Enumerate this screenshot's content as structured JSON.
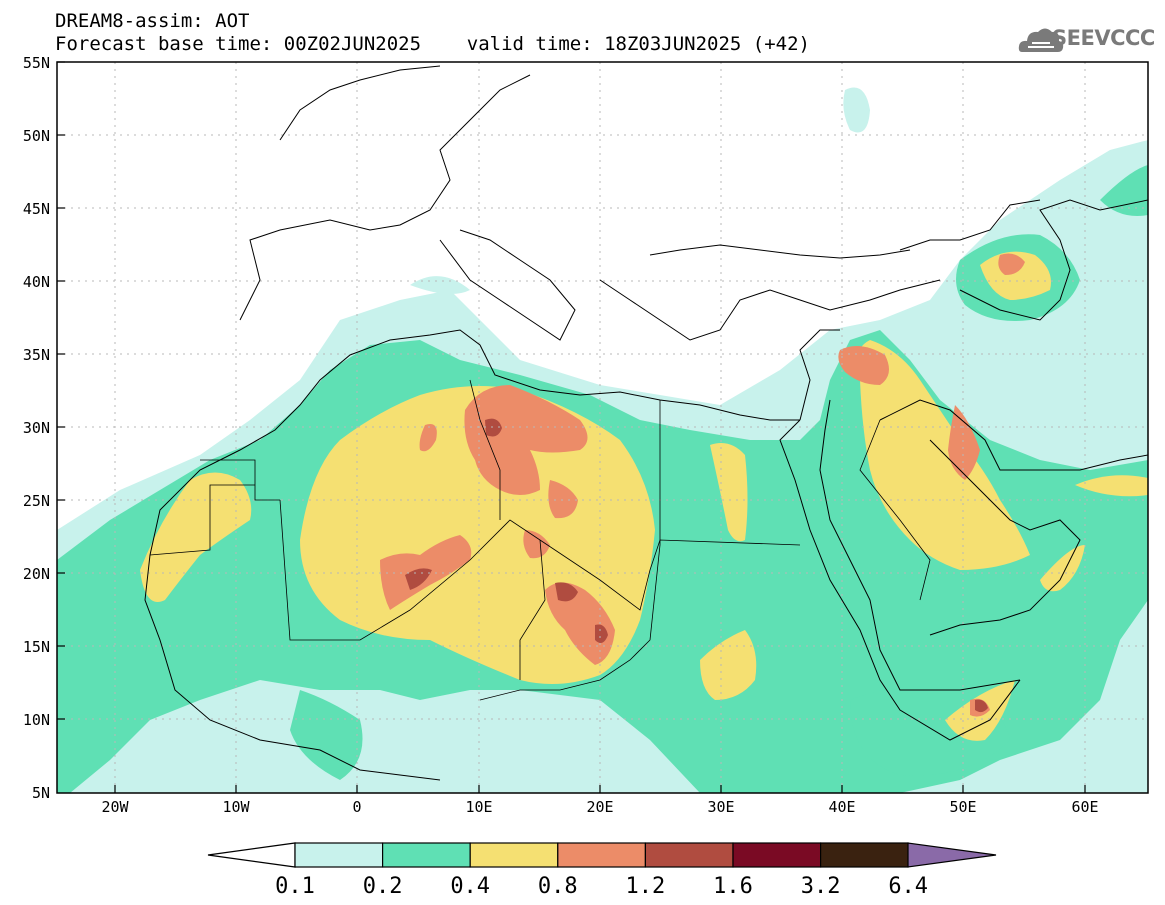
{
  "header": {
    "line1": "DREAM8-assim: AOT",
    "line2": "Forecast base time: 00Z02JUN2025    valid time: 18Z03JUN2025 (+42)"
  },
  "logo": {
    "text": "SEEVCCC",
    "icon": "cloud-icon"
  },
  "map": {
    "variable": "AOT",
    "lon_range": [
      -25,
      65
    ],
    "lat_range": [
      5,
      55
    ],
    "lat_ticks": [
      "55N",
      "50N",
      "45N",
      "40N",
      "35N",
      "30N",
      "25N",
      "20N",
      "15N",
      "10N",
      "5N"
    ],
    "lon_ticks": [
      "20W",
      "10W",
      "0",
      "10E",
      "20E",
      "30E",
      "40E",
      "50E",
      "60E"
    ]
  },
  "colorbar": {
    "levels": [
      "0.1",
      "0.2",
      "0.4",
      "0.8",
      "1.2",
      "1.6",
      "3.2",
      "6.4"
    ],
    "colors": [
      "#c8f2ec",
      "#5fe0b4",
      "#f5e072",
      "#ec8c68",
      "#b04c40",
      "#7a0a24",
      "#3a2210",
      "#8a6aa8"
    ],
    "under_color": "#ffffff",
    "over_color": "#8a6aa8"
  }
}
